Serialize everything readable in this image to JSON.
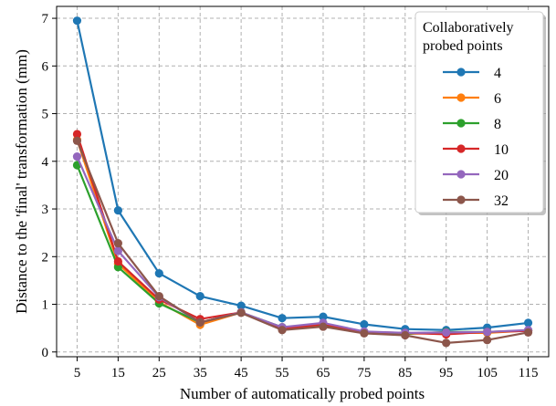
{
  "chart_data": {
    "type": "line",
    "title": "",
    "xlabel": "Number of automatically probed points",
    "ylabel": "Distance to the 'final' transformation (mm)",
    "x": [
      5,
      15,
      25,
      35,
      45,
      55,
      65,
      75,
      85,
      95,
      105,
      115
    ],
    "xlim": [
      0,
      120
    ],
    "ylim": [
      -0.1,
      7.25
    ],
    "xticks": [
      5,
      15,
      25,
      35,
      45,
      55,
      65,
      75,
      85,
      95,
      105,
      115
    ],
    "yticks": [
      0,
      1,
      2,
      3,
      4,
      5,
      6,
      7
    ],
    "grid": true,
    "legend_title_lines": [
      "Collaboratively",
      "probed points"
    ],
    "legend_position": "top-right",
    "series": [
      {
        "name": "4",
        "color": "#1f77b4",
        "values": [
          6.95,
          2.97,
          1.65,
          1.17,
          0.97,
          0.71,
          0.74,
          0.58,
          0.48,
          0.46,
          0.51,
          0.61
        ]
      },
      {
        "name": "6",
        "color": "#ff7f0e",
        "values": [
          4.45,
          1.85,
          1.05,
          0.57,
          0.83,
          0.48,
          0.56,
          0.42,
          0.38,
          0.4,
          0.4,
          0.45
        ]
      },
      {
        "name": "8",
        "color": "#2ca02c",
        "values": [
          3.92,
          1.78,
          1.02,
          0.62,
          0.83,
          0.52,
          0.57,
          0.42,
          0.38,
          0.42,
          0.42,
          0.45
        ]
      },
      {
        "name": "10",
        "color": "#d62728",
        "values": [
          4.57,
          1.9,
          1.1,
          0.69,
          0.83,
          0.49,
          0.58,
          0.42,
          0.4,
          0.37,
          0.42,
          0.44
        ]
      },
      {
        "name": "20",
        "color": "#9467bd",
        "values": [
          4.1,
          2.12,
          1.15,
          0.62,
          0.83,
          0.52,
          0.61,
          0.43,
          0.4,
          0.41,
          0.42,
          0.46
        ]
      },
      {
        "name": "32",
        "color": "#8c564b",
        "values": [
          4.43,
          2.28,
          1.17,
          0.62,
          0.82,
          0.46,
          0.53,
          0.39,
          0.35,
          0.19,
          0.25,
          0.41
        ]
      }
    ]
  }
}
